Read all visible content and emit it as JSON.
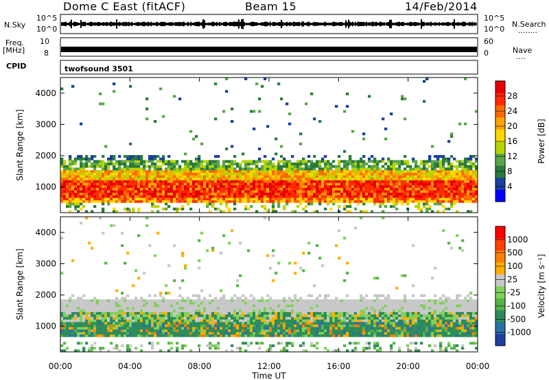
{
  "header": {
    "station": "Dome C East (fitACF)",
    "beam": "Beam 15",
    "date": "14/Feb/2014"
  },
  "left_labels": {
    "nsky": "N.Sky",
    "freq": "Freq.",
    "mhz": "[MHz]",
    "cpid": "CPID"
  },
  "right_labels": {
    "nsearch": "N.Search",
    "nave": "Nave",
    "dots_search": "........",
    "dots_nave": "...."
  },
  "cpid_text": "twofsound 3501",
  "noise_axis": {
    "left_top": "10^5",
    "left_bottom": "10^0",
    "right_top": "10^5",
    "right_bottom": "10^0"
  },
  "freq_axis": {
    "left_top": "10",
    "left_bottom": "8",
    "right_top": "60",
    "right_bottom": "0"
  },
  "xaxis": {
    "label": "Time UT",
    "ticks": [
      "00:00",
      "04:00",
      "08:00",
      "12:00",
      "16:00",
      "20:00",
      "00:00"
    ]
  },
  "power_colorbar": {
    "label": "Power [dB]",
    "ticks": [
      "28",
      "24",
      "20",
      "16",
      "12",
      "8",
      "4"
    ],
    "colors": [
      "#0000ff",
      "#1c3f9e",
      "#2a7a3a",
      "#59a64a",
      "#b8d400",
      "#ffd700",
      "#ffa500",
      "#ff6a00",
      "#ff2a00",
      "#e60000"
    ]
  },
  "velocity_colorbar": {
    "label": "Velocity [m s⁻¹]",
    "ticks": [
      "1000",
      "500",
      "100",
      "25",
      "-25",
      "-100",
      "-500",
      "-1000"
    ],
    "colors": [
      "#1f3fa0",
      "#2c6fa8",
      "#2e8c5a",
      "#54b548",
      "#7fd15b",
      "#c8c8c8",
      "#ffb000",
      "#ff7f00",
      "#ff4000",
      "#ff0000"
    ]
  },
  "chart_data": [
    {
      "type": "heatmap",
      "title": "",
      "ylabel": "Slant Range [km]",
      "xlabel": "Time UT",
      "x_range_hours": [
        0,
        24
      ],
      "ylim": [
        180,
        4500
      ],
      "yticks": [
        "1000",
        "2000",
        "3000",
        "4000"
      ],
      "quantity": "Power [dB]",
      "bands": [
        {
          "x": [
            0,
            24
          ],
          "y": [
            600,
            1200
          ],
          "level": "red"
        },
        {
          "x": [
            0,
            24
          ],
          "y": [
            1200,
            1550
          ],
          "level": "orange"
        },
        {
          "x": [
            0,
            24
          ],
          "y": [
            1550,
            1800
          ],
          "level": "green"
        },
        {
          "x": [
            0,
            6
          ],
          "y": [
            1800,
            2000
          ],
          "level": "blue"
        }
      ]
    },
    {
      "type": "heatmap",
      "title": "",
      "ylabel": "Slant Range [km]",
      "xlabel": "Time UT",
      "x_range_hours": [
        0,
        24
      ],
      "ylim": [
        180,
        4500
      ],
      "yticks": [
        "1000",
        "2000",
        "3000",
        "4000"
      ],
      "quantity": "Velocity [m s⁻¹]",
      "bands": [
        {
          "x": [
            0,
            24
          ],
          "y": [
            500,
            1300
          ],
          "level": "dark-green"
        },
        {
          "x": [
            0,
            24
          ],
          "y": [
            1300,
            1700
          ],
          "level": "light-green"
        },
        {
          "x": [
            0,
            24
          ],
          "y": [
            1700,
            2000
          ],
          "level": "grey"
        }
      ]
    }
  ]
}
